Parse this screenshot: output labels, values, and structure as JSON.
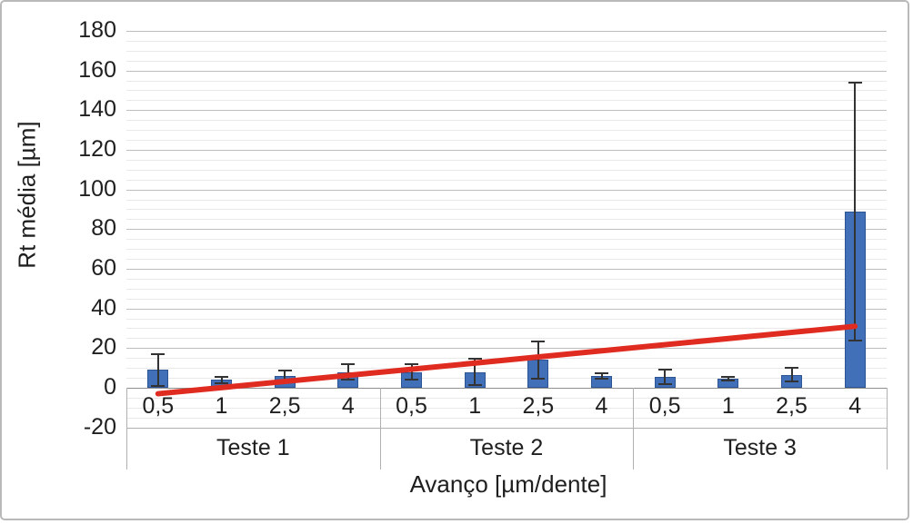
{
  "chart_data": {
    "type": "bar",
    "title": "",
    "ylabel": "Rt média [µm]",
    "xlabel": "Avanço [µm/dente]",
    "ylim": [
      -20,
      180
    ],
    "ytick_step": 20,
    "yminor_step": 5,
    "ytick_labels": [
      "180",
      "160",
      "140",
      "120",
      "100",
      "80",
      "60",
      "40",
      "20",
      "0",
      "-20"
    ],
    "grid": "horizontal major+minor",
    "legend": "none",
    "categories": [
      "0,5",
      "1",
      "2,5",
      "4"
    ],
    "groups": [
      {
        "label": "Teste 1",
        "values": [
          9,
          4,
          6,
          8
        ],
        "errors": [
          8,
          1.5,
          2.5,
          4
        ]
      },
      {
        "label": "Teste 2",
        "values": [
          8,
          8,
          14,
          6
        ],
        "errors": [
          4,
          6.5,
          9.5,
          1.5
        ]
      },
      {
        "label": "Teste 3",
        "values": [
          5.5,
          4.5,
          6.5,
          89
        ],
        "errors": [
          3.5,
          1,
          3.5,
          65
        ]
      }
    ],
    "trendline": {
      "type": "linear",
      "start_value": -3,
      "end_value": 31,
      "spans": "from first bar center to last bar center"
    },
    "colors": {
      "bar_fill": "#4170b8",
      "bar_border": "#2d5493",
      "error_bar": "#333333",
      "trend": "#e02b20",
      "grid_major": "#bdbdbd",
      "grid_minor": "#e9e9e9",
      "axis_line": "#8f8f8f",
      "table_frame": "#b0b0b0",
      "text": "#1f1f1f"
    }
  }
}
